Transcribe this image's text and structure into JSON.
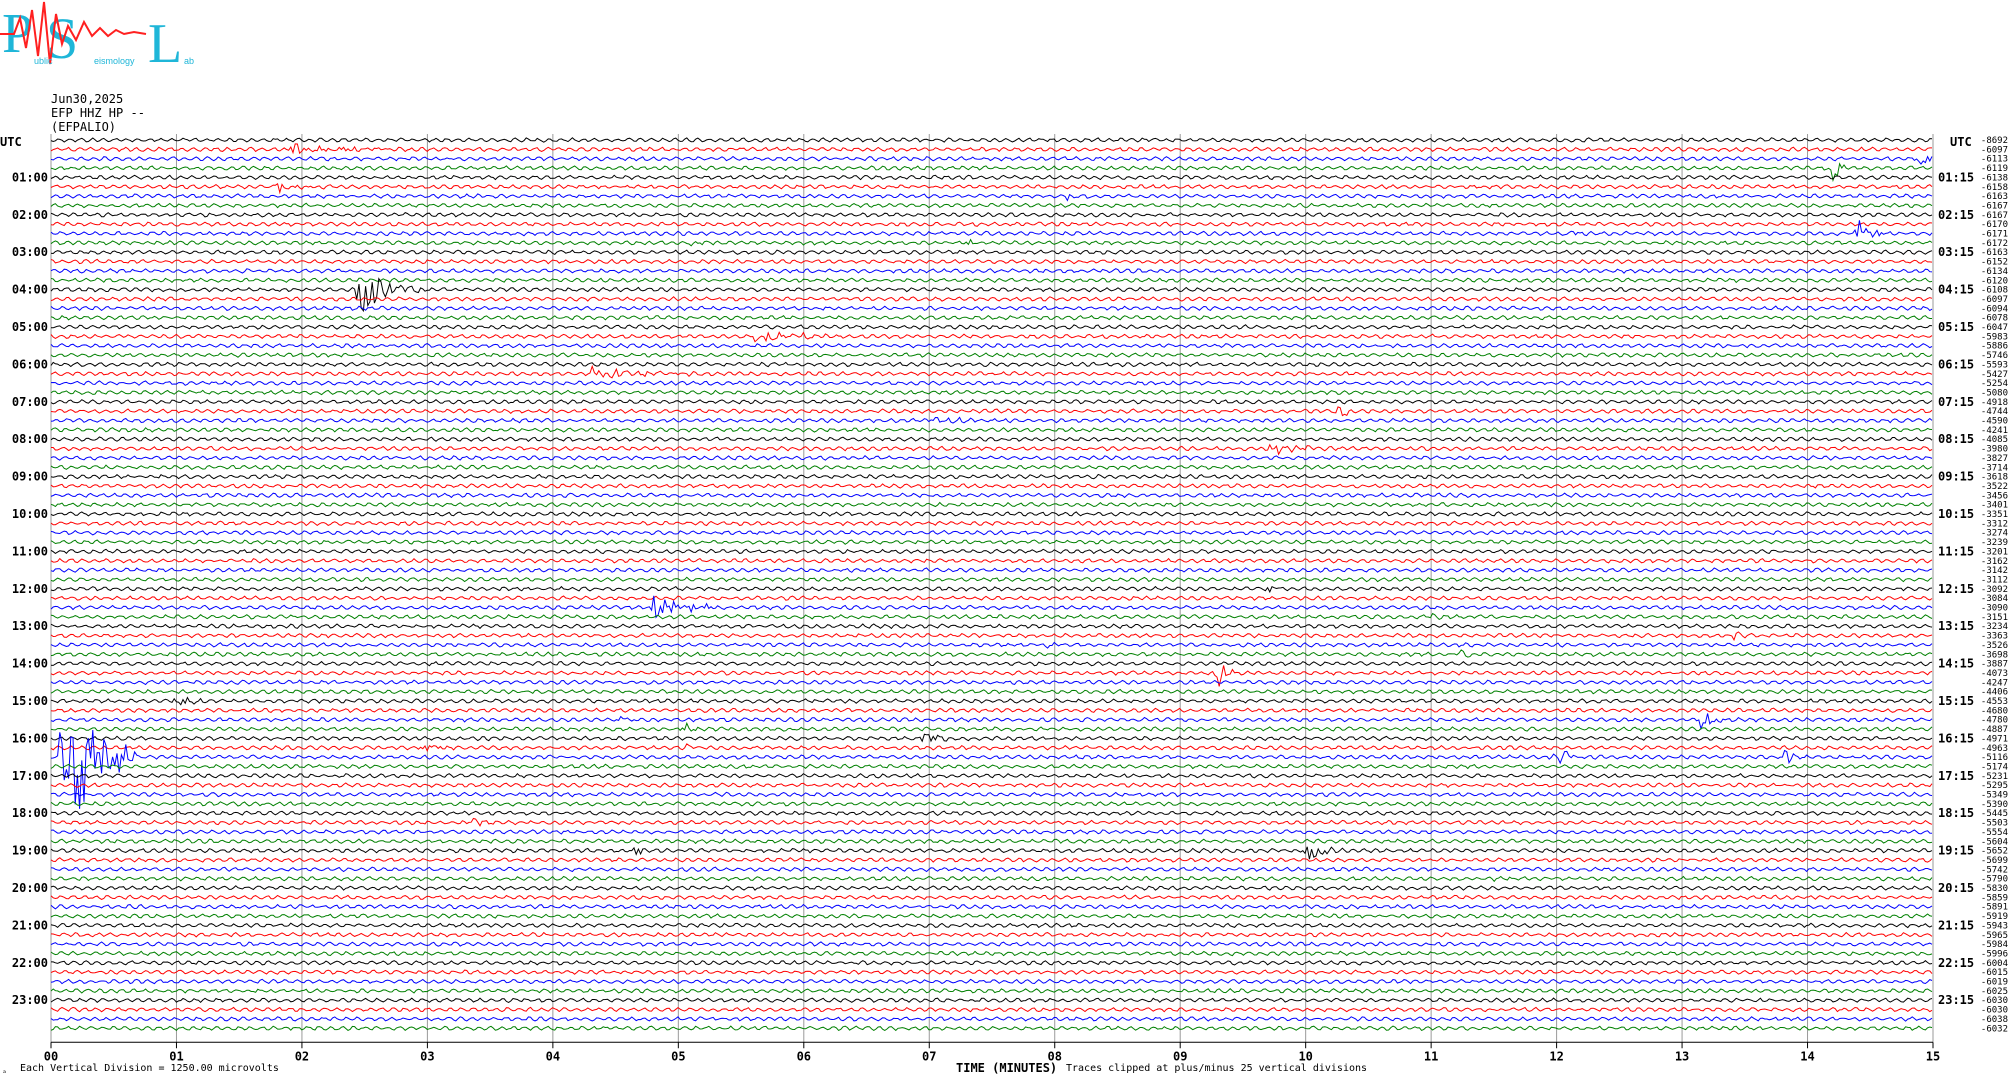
{
  "logo": {
    "letters": [
      "P",
      "S",
      "L"
    ],
    "small_words": [
      "ublic",
      "eismology",
      "ab"
    ]
  },
  "header": {
    "date": "Jun30,2025",
    "channel": "EFP HHZ HP --",
    "station": "(EFPALIO)"
  },
  "chart_data": {
    "type": "line",
    "description_kind": "helicorder",
    "left_axis_label": "UTC",
    "right_axis_label": "UTC",
    "left_hour_labels": [
      "01:00",
      "02:00",
      "03:00",
      "04:00",
      "05:00",
      "06:00",
      "07:00",
      "08:00",
      "09:00",
      "10:00",
      "11:00",
      "12:00",
      "13:00",
      "14:00",
      "15:00",
      "16:00",
      "17:00",
      "18:00",
      "19:00",
      "20:00",
      "21:00",
      "22:00",
      "23:00"
    ],
    "right_hour_labels": [
      "01:15",
      "02:15",
      "03:15",
      "04:15",
      "05:15",
      "06:15",
      "07:15",
      "08:15",
      "09:15",
      "10:15",
      "11:15",
      "12:15",
      "13:15",
      "14:15",
      "15:15",
      "16:15",
      "17:15",
      "18:15",
      "19:15",
      "20:15",
      "21:15",
      "22:15",
      "23:15"
    ],
    "x_ticks": [
      "00",
      "01",
      "02",
      "03",
      "04",
      "05",
      "06",
      "07",
      "08",
      "09",
      "10",
      "11",
      "12",
      "13",
      "14",
      "15"
    ],
    "xlabel": "TIME (MINUTES)",
    "xlim": [
      0,
      15
    ],
    "lines_per_hour": 4,
    "line_count": 96,
    "trace_colors": [
      "#000000",
      "#ff0000",
      "#0000ff",
      "#008000"
    ],
    "grid": true,
    "row_offsets": [
      "-8692",
      "-6097",
      "-6113",
      "-6119",
      "-6138",
      "-6158",
      "-6163",
      "-6167",
      "-6167",
      "-6170",
      "-6171",
      "-6172",
      "-6163",
      "-6152",
      "-6134",
      "-6120",
      "-6108",
      "-6097",
      "-6094",
      "-6078",
      "-6047",
      "-5983",
      "-5886",
      "-5746",
      "-5593",
      "-5427",
      "-5254",
      "-5080",
      "-4918",
      "-4744",
      "-4590",
      "-4241",
      "-4085",
      "-3980",
      "-3827",
      "-3714",
      "-3618",
      "-3522",
      "-3456",
      "-3401",
      "-3351",
      "-3312",
      "-3274",
      "-3239",
      "-3201",
      "-3162",
      "-3142",
      "-3112",
      "-3092",
      "-3084",
      "-3090",
      "-3151",
      "-3234",
      "-3363",
      "-3526",
      "-3698",
      "-3887",
      "-4073",
      "-4247",
      "-4406",
      "-4553",
      "-4680",
      "-4780",
      "-4887",
      "-4971",
      "-4963",
      "-5116",
      "-5174",
      "-5231",
      "-5295",
      "-5349",
      "-5390",
      "-5445",
      "-5503",
      "-5554",
      "-5604",
      "-5652",
      "-5699",
      "-5742",
      "-5790",
      "-5830",
      "-5859",
      "-5891",
      "-5919",
      "-5943",
      "-5965",
      "-5984",
      "-5996",
      "-6004",
      "-6015",
      "-6019",
      "-6025",
      "-6030",
      "-6030",
      "-6038",
      "-6032"
    ],
    "events": [
      {
        "row": 1,
        "minute": 1.9,
        "amp": 5,
        "dur": 1.1
      },
      {
        "row": 2,
        "minute": 14.9,
        "amp": 10,
        "dur": 0.1
      },
      {
        "row": 3,
        "minute": 14.2,
        "amp": 14,
        "dur": 0.15
      },
      {
        "row": 5,
        "minute": 1.8,
        "amp": 6,
        "dur": 0.4
      },
      {
        "row": 6,
        "minute": 8.1,
        "amp": 3,
        "dur": 0.3
      },
      {
        "row": 10,
        "minute": 12.1,
        "amp": 5,
        "dur": 0.1
      },
      {
        "row": 10,
        "minute": 14.4,
        "amp": 18,
        "dur": 0.2
      },
      {
        "row": 11,
        "minute": 5.1,
        "amp": 3,
        "dur": 0.15
      },
      {
        "row": 11,
        "minute": 7.3,
        "amp": 5,
        "dur": 0.1
      },
      {
        "row": 15,
        "minute": 2.9,
        "amp": 4,
        "dur": 0.1
      },
      {
        "row": 16,
        "minute": 2.45,
        "amp": 30,
        "dur": 0.5
      },
      {
        "row": 21,
        "minute": 5.6,
        "amp": 6,
        "dur": 0.8
      },
      {
        "row": 25,
        "minute": 4.3,
        "amp": 6,
        "dur": 0.9
      },
      {
        "row": 29,
        "minute": 10.25,
        "amp": 12,
        "dur": 0.1
      },
      {
        "row": 30,
        "minute": 7.0,
        "amp": 3,
        "dur": 0.6
      },
      {
        "row": 33,
        "minute": 9.7,
        "amp": 5,
        "dur": 0.6
      },
      {
        "row": 48,
        "minute": 9.7,
        "amp": 5,
        "dur": 0.1
      },
      {
        "row": 50,
        "minute": 4.8,
        "amp": 13,
        "dur": 0.5
      },
      {
        "row": 51,
        "minute": 11.0,
        "amp": 3,
        "dur": 0.2
      },
      {
        "row": 53,
        "minute": 13.4,
        "amp": 3,
        "dur": 0.3
      },
      {
        "row": 54,
        "minute": 7.95,
        "amp": 7,
        "dur": 0.1
      },
      {
        "row": 55,
        "minute": 11.2,
        "amp": 4,
        "dur": 0.3
      },
      {
        "row": 57,
        "minute": 9.3,
        "amp": 14,
        "dur": 0.2
      },
      {
        "row": 60,
        "minute": 1.0,
        "amp": 9,
        "dur": 0.2
      },
      {
        "row": 62,
        "minute": 4.55,
        "amp": 8,
        "dur": 0.1
      },
      {
        "row": 62,
        "minute": 13.15,
        "amp": 11,
        "dur": 0.2
      },
      {
        "row": 63,
        "minute": 5.05,
        "amp": 5,
        "dur": 0.1
      },
      {
        "row": 64,
        "minute": 6.95,
        "amp": 9,
        "dur": 0.2
      },
      {
        "row": 65,
        "minute": 2.95,
        "amp": 8,
        "dur": 0.2
      },
      {
        "row": 65,
        "minute": 5.05,
        "amp": 5,
        "dur": 0.1
      },
      {
        "row": 66,
        "minute": 0.1,
        "amp": 90,
        "dur": 0.6
      },
      {
        "row": 66,
        "minute": 12.0,
        "amp": 12,
        "dur": 0.2
      },
      {
        "row": 66,
        "minute": 13.8,
        "amp": 11,
        "dur": 0.1
      },
      {
        "row": 73,
        "minute": 3.35,
        "amp": 5,
        "dur": 0.3
      },
      {
        "row": 76,
        "minute": 4.65,
        "amp": 4,
        "dur": 0.1
      },
      {
        "row": 76,
        "minute": 10.0,
        "amp": 12,
        "dur": 0.3
      },
      {
        "row": 79,
        "minute": 11.5,
        "amp": 2,
        "dur": 0.5
      }
    ]
  },
  "footer": {
    "scale_note": "Each Vertical Division = 1250.00 microvolts",
    "clip_note": "Traces clipped at plus/minus 25 vertical divisions",
    "corner_mark": "ₐ"
  }
}
